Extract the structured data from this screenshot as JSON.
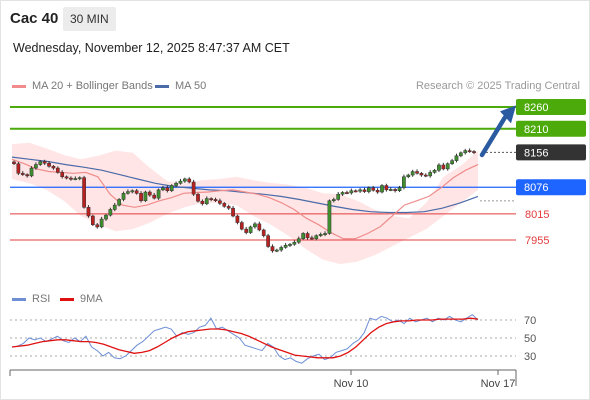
{
  "header": {
    "title": "Cac 40",
    "period": "30 MIN"
  },
  "datetime": "Wednesday, November 12, 2025 8:47:37 AM CET",
  "legend": {
    "ma20_label": "MA 20 + Bollinger Bands",
    "ma50_label": "MA 50",
    "rsi_label": "RSI",
    "rsi_ma_label": "9MA"
  },
  "copyright": "Research © 2025 Trading Central",
  "colors": {
    "resistance": "#4caa0a",
    "current": "#333333",
    "pivot": "#1e64ff",
    "support": "#e23c3c",
    "ma20": "#f08c8c",
    "ma50": "#4a6aa8",
    "band": "#ffe0e0",
    "arrow": "#2a5aa0",
    "rsi": "#6e8fd6",
    "rsi_ma": "#e01010"
  },
  "chart_data": [
    {
      "type": "candlestick",
      "x_tick_labels": [
        "Nov 10",
        "Nov 17"
      ],
      "price_range": [
        7870,
        8310
      ],
      "levels": [
        {
          "value": 8260,
          "label": "8260",
          "kind": "resistance"
        },
        {
          "value": 8210,
          "label": "8210",
          "kind": "resistance"
        },
        {
          "value": 8156,
          "label": "8156",
          "kind": "current"
        },
        {
          "value": 8076,
          "label": "8076",
          "kind": "pivot"
        },
        {
          "value": 8015,
          "label": "8015",
          "kind": "support"
        },
        {
          "value": 7955,
          "label": "7955",
          "kind": "support"
        }
      ],
      "arrow": {
        "from": 8150,
        "to": 8250,
        "direction": "up"
      },
      "closes": [
        8130,
        8108,
        8105,
        8102,
        8120,
        8128,
        8135,
        8131,
        8124,
        8120,
        8110,
        8100,
        8097,
        8095,
        8096,
        8098,
        8030,
        8010,
        7990,
        7985,
        8003,
        8012,
        8025,
        8035,
        8048,
        8062,
        8066,
        8068,
        8062,
        8045,
        8065,
        8058,
        8051,
        8070,
        8075,
        8068,
        8080,
        8085,
        8090,
        8095,
        8088,
        8060,
        8044,
        8038,
        8050,
        8048,
        8045,
        8039,
        8032,
        8028,
        8010,
        7995,
        7980,
        7972,
        7985,
        7992,
        7978,
        7965,
        7940,
        7930,
        7932,
        7938,
        7943,
        7945,
        7950,
        7958,
        7970,
        7960,
        7958,
        7965,
        7968,
        7970,
        8045,
        8048,
        8060,
        8064,
        8063,
        8068,
        8067,
        8070,
        8066,
        8075,
        8069,
        8065,
        8080,
        8070,
        8071,
        8068,
        8075,
        8100,
        8104,
        8112,
        8108,
        8104,
        8102,
        8110,
        8115,
        8127,
        8118,
        8130,
        8137,
        8148,
        8155,
        8160,
        8158,
        8156
      ],
      "ma20_series": [
        8140,
        8130,
        8118,
        8112,
        8110,
        8108,
        8110,
        8100,
        8060,
        8035,
        8030,
        8035,
        8045,
        8052,
        8062,
        8064,
        8065,
        8068,
        8070,
        8065,
        8060,
        8052,
        8040,
        8025,
        8005,
        7990,
        7972,
        7958,
        7958,
        7970,
        7985,
        8010,
        8035,
        8045,
        8055,
        8075,
        8098,
        8115,
        8128
      ],
      "ma50_series": [
        8145,
        8140,
        8135,
        8128,
        8122,
        8115,
        8105,
        8095,
        8085,
        8078,
        8074,
        8070,
        8068,
        8064,
        8060,
        8055,
        8048,
        8040,
        8032,
        8025,
        8020,
        8018,
        8018,
        8020,
        8028,
        8040,
        8055
      ],
      "bollinger_upper": [
        8175,
        8178,
        8165,
        8150,
        8140,
        8148,
        8160,
        8155,
        8120,
        8090,
        8085,
        8092,
        8095,
        8100,
        8092,
        8086,
        8082,
        8075,
        8062,
        8060,
        8045,
        8025,
        8010,
        8005,
        8040,
        8100,
        8125,
        8160
      ],
      "bollinger_lower": [
        8095,
        8085,
        8070,
        8045,
        8010,
        7990,
        7975,
        7980,
        7995,
        8015,
        8030,
        8040,
        8040,
        8035,
        8010,
        7990,
        7965,
        7935,
        7910,
        7900,
        7905,
        7920,
        7940,
        7960,
        7980,
        8010,
        8040,
        8070
      ]
    },
    {
      "type": "line",
      "yticks": [
        70,
        50,
        30
      ],
      "ylim": [
        10,
        90
      ],
      "series": [
        {
          "name": "RSI",
          "values": [
            40,
            41,
            44,
            50,
            48,
            50,
            46,
            49,
            52,
            47,
            45,
            50,
            46,
            52,
            40,
            36,
            30,
            34,
            28,
            27,
            30,
            36,
            42,
            46,
            52,
            58,
            60,
            62,
            60,
            52,
            56,
            54,
            56,
            62,
            64,
            72,
            60,
            62,
            58,
            54,
            50,
            42,
            40,
            38,
            36,
            44,
            40,
            30,
            26,
            28,
            24,
            22,
            27,
            30,
            32,
            26,
            28,
            34,
            36,
            38,
            44,
            48,
            56,
            72,
            70,
            74,
            72,
            68,
            70,
            66,
            72,
            68,
            70,
            72,
            68,
            72,
            70,
            74,
            70,
            68,
            72,
            76,
            70
          ]
        },
        {
          "name": "9MA",
          "values": [
            40,
            41,
            42,
            44,
            46,
            47,
            48,
            48,
            47,
            46,
            46,
            45,
            43,
            40,
            37,
            35,
            33,
            34,
            36,
            40,
            45,
            50,
            54,
            57,
            58,
            59,
            60,
            60,
            59,
            57,
            55,
            52,
            48,
            44,
            40,
            37,
            34,
            31,
            30,
            29,
            28,
            28,
            28,
            30,
            34,
            40,
            48,
            56,
            62,
            66,
            68,
            69,
            69,
            70,
            70,
            70,
            71,
            71,
            71,
            71,
            72,
            71
          ]
        }
      ]
    }
  ]
}
